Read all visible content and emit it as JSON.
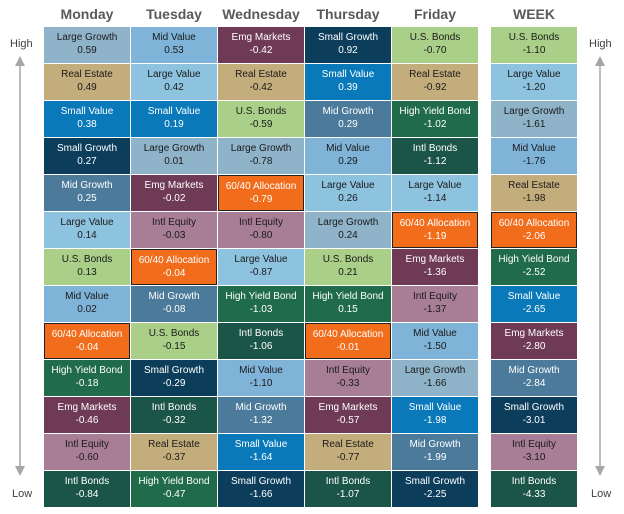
{
  "days": [
    "Monday",
    "Tuesday",
    "Wednesday",
    "Thursday",
    "Friday"
  ],
  "week_label": "WEEK",
  "side_labels": {
    "high": "High",
    "low": "Low"
  },
  "asset_colors": {
    "Large Growth": "#8fb3c9",
    "Real Estate": "#c4ad7c",
    "Small Value": "#0a79ba",
    "Small Growth": "#0c3e5c",
    "Mid Growth": "#4b7a9b",
    "Large Value": "#8ec3e0",
    "U.S. Bonds": "#a9cf88",
    "Mid Value": "#7fb3d8",
    "60/40 Allocation": "#f26d1b",
    "High Yield Bond": "#1f6b4a",
    "Emg Markets": "#6f3a55",
    "Intl Equity": "#a87e96",
    "Intl Bonds": "#1b5548"
  },
  "chart_data": {
    "type": "table",
    "columns": [
      {
        "label": "Monday",
        "cells": [
          {
            "name": "Large Growth",
            "value": "0.59"
          },
          {
            "name": "Real Estate",
            "value": "0.49"
          },
          {
            "name": "Small Value",
            "value": "0.38"
          },
          {
            "name": "Small Growth",
            "value": "0.27"
          },
          {
            "name": "Mid Growth",
            "value": "0.25"
          },
          {
            "name": "Large Value",
            "value": "0.14"
          },
          {
            "name": "U.S. Bonds",
            "value": "0.13"
          },
          {
            "name": "Mid Value",
            "value": "0.02"
          },
          {
            "name": "60/40 Allocation",
            "value": "-0.04"
          },
          {
            "name": "High Yield Bond",
            "value": "-0.18"
          },
          {
            "name": "Emg Markets",
            "value": "-0.46"
          },
          {
            "name": "Intl Equity",
            "value": "-0.60"
          },
          {
            "name": "Intl Bonds",
            "value": "-0.84"
          }
        ]
      },
      {
        "label": "Tuesday",
        "cells": [
          {
            "name": "Mid Value",
            "value": "0.53"
          },
          {
            "name": "Large Value",
            "value": "0.42"
          },
          {
            "name": "Small Value",
            "value": "0.19"
          },
          {
            "name": "Large Growth",
            "value": "0.01"
          },
          {
            "name": "Emg Markets",
            "value": "-0.02"
          },
          {
            "name": "Intl Equity",
            "value": "-0.03"
          },
          {
            "name": "60/40 Allocation",
            "value": "-0.04"
          },
          {
            "name": "Mid Growth",
            "value": "-0.08"
          },
          {
            "name": "U.S. Bonds",
            "value": "-0.15"
          },
          {
            "name": "Small Growth",
            "value": "-0.29"
          },
          {
            "name": "Intl Bonds",
            "value": "-0.32"
          },
          {
            "name": "Real Estate",
            "value": "-0.37"
          },
          {
            "name": "High Yield Bond",
            "value": "-0.47"
          }
        ]
      },
      {
        "label": "Wednesday",
        "cells": [
          {
            "name": "Emg Markets",
            "value": "-0.42"
          },
          {
            "name": "Real Estate",
            "value": "-0.42"
          },
          {
            "name": "U.S. Bonds",
            "value": "-0.59"
          },
          {
            "name": "Large Growth",
            "value": "-0.78"
          },
          {
            "name": "60/40 Allocation",
            "value": "-0.79"
          },
          {
            "name": "Intl Equity",
            "value": "-0.80"
          },
          {
            "name": "Large Value",
            "value": "-0.87"
          },
          {
            "name": "High Yield Bond",
            "value": "-1.03"
          },
          {
            "name": "Intl Bonds",
            "value": "-1.06"
          },
          {
            "name": "Mid Value",
            "value": "-1.10"
          },
          {
            "name": "Mid Growth",
            "value": "-1.32"
          },
          {
            "name": "Small Value",
            "value": "-1.64"
          },
          {
            "name": "Small Growth",
            "value": "-1.66"
          }
        ]
      },
      {
        "label": "Thursday",
        "cells": [
          {
            "name": "Small Growth",
            "value": "0.92"
          },
          {
            "name": "Small Value",
            "value": "0.39"
          },
          {
            "name": "Mid Growth",
            "value": "0.29"
          },
          {
            "name": "Mid Value",
            "value": "0.29"
          },
          {
            "name": "Large Value",
            "value": "0.26"
          },
          {
            "name": "Large Growth",
            "value": "0.24"
          },
          {
            "name": "U.S. Bonds",
            "value": "0.21"
          },
          {
            "name": "High Yield Bond",
            "value": "0.15"
          },
          {
            "name": "60/40 Allocation",
            "value": "-0.01"
          },
          {
            "name": "Intl Equity",
            "value": "-0.33"
          },
          {
            "name": "Emg Markets",
            "value": "-0.57"
          },
          {
            "name": "Real Estate",
            "value": "-0.77"
          },
          {
            "name": "Intl Bonds",
            "value": "-1.07"
          }
        ]
      },
      {
        "label": "Friday",
        "cells": [
          {
            "name": "U.S. Bonds",
            "value": "-0.70"
          },
          {
            "name": "Real Estate",
            "value": "-0.92"
          },
          {
            "name": "High Yield Bond",
            "value": "-1.02"
          },
          {
            "name": "Intl Bonds",
            "value": "-1.12"
          },
          {
            "name": "Large Value",
            "value": "-1.14"
          },
          {
            "name": "60/40 Allocation",
            "value": "-1.19"
          },
          {
            "name": "Emg Markets",
            "value": "-1.36"
          },
          {
            "name": "Intl Equity",
            "value": "-1.37"
          },
          {
            "name": "Mid Value",
            "value": "-1.50"
          },
          {
            "name": "Large Growth",
            "value": "-1.66"
          },
          {
            "name": "Small Value",
            "value": "-1.98"
          },
          {
            "name": "Mid Growth",
            "value": "-1.99"
          },
          {
            "name": "Small Growth",
            "value": "-2.25"
          }
        ]
      },
      {
        "label": "WEEK",
        "cells": [
          {
            "name": "U.S. Bonds",
            "value": "-1.10"
          },
          {
            "name": "Large Value",
            "value": "-1.20"
          },
          {
            "name": "Large Growth",
            "value": "-1.61"
          },
          {
            "name": "Mid Value",
            "value": "-1.76"
          },
          {
            "name": "Real Estate",
            "value": "-1.98"
          },
          {
            "name": "60/40 Allocation",
            "value": "-2.06"
          },
          {
            "name": "High Yield Bond",
            "value": "-2.52"
          },
          {
            "name": "Small Value",
            "value": "-2.65"
          },
          {
            "name": "Emg Markets",
            "value": "-2.80"
          },
          {
            "name": "Mid Growth",
            "value": "-2.84"
          },
          {
            "name": "Small Growth",
            "value": "-3.01"
          },
          {
            "name": "Intl Equity",
            "value": "-3.10"
          },
          {
            "name": "Intl Bonds",
            "value": "-4.33"
          }
        ]
      }
    ]
  }
}
